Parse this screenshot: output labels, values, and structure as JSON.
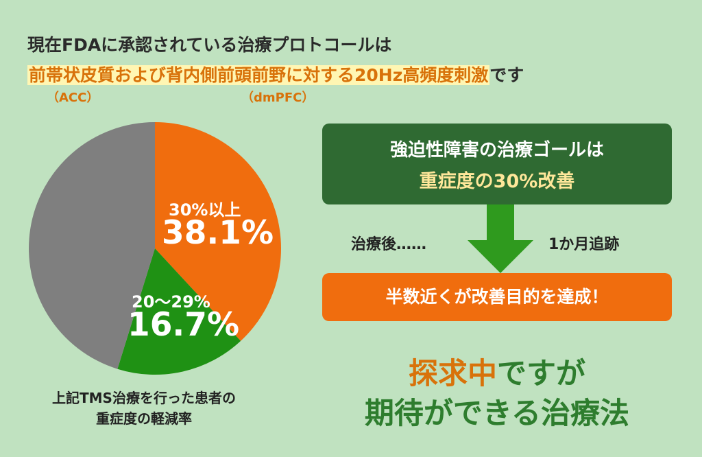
{
  "heading": {
    "line1": "現在FDAに承認されている治療プロトコールは",
    "highlight_a": "前帯状皮質および背内側前頭前野に対する20Hz高頻度刺激",
    "line2_tail": "です",
    "acc": "（ACC）",
    "dmpfc": "（dmPFC）"
  },
  "chart_data": {
    "type": "pie",
    "slices": [
      {
        "label": "30%以上",
        "value": 38.1,
        "value_text": "38.1%",
        "color": "#f06d0e"
      },
      {
        "label": "20〜29%",
        "value": 16.7,
        "value_text": "16.7%",
        "color": "#1f9114"
      },
      {
        "label": "",
        "value": 45.2,
        "value_text": "",
        "color": "#7f7f7f"
      }
    ],
    "caption_line1": "上記TMS治療を行った患者の",
    "caption_line2": "重症度の軽減率"
  },
  "goal": {
    "line1": "強迫性障害の治療ゴールは",
    "line2": "重症度の30%改善"
  },
  "flow": {
    "after": "治療後……",
    "followup": "1か月追跡"
  },
  "result": "半数近くが改善目的を達成！",
  "conclusion": {
    "line1_orange": "探求中",
    "line1_rest": "ですが",
    "line2": "期待ができる治療法"
  },
  "colors": {
    "background": "#c0e2c0",
    "orange": "#f06d0e",
    "green_dark": "#2f6a32",
    "green": "#1f9114",
    "gray": "#7f7f7f"
  }
}
